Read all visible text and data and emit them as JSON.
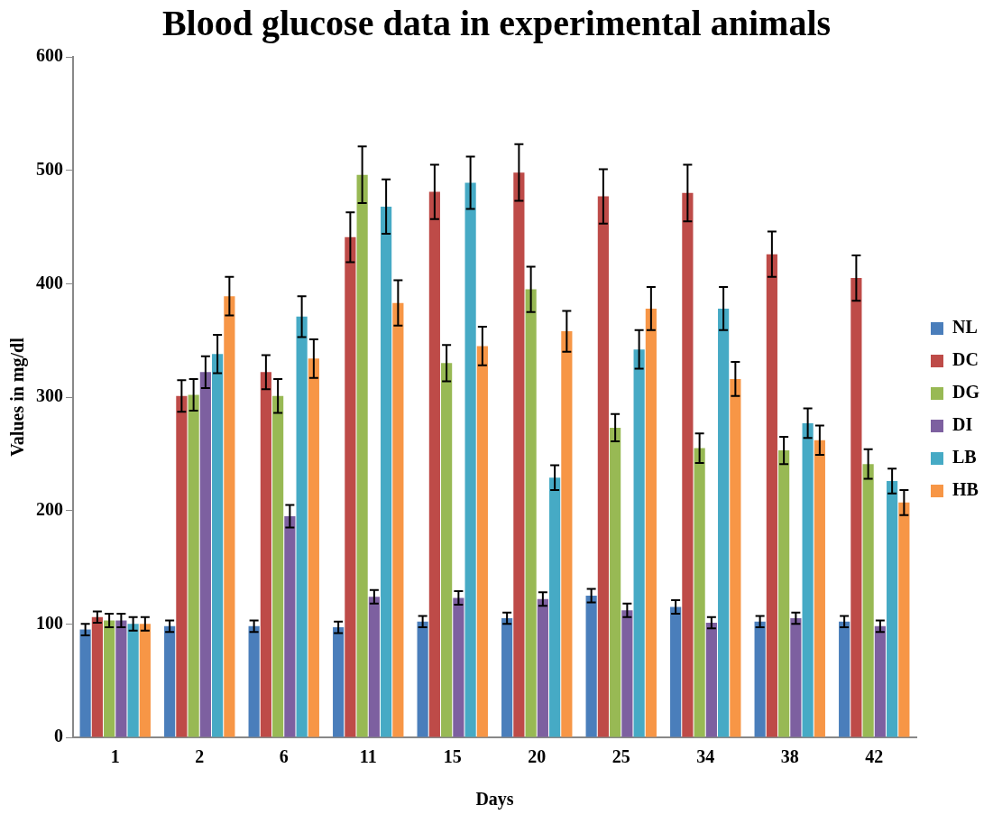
{
  "chart_data": {
    "type": "bar",
    "title": "Blood glucose data in experimental animals",
    "xlabel": "Days",
    "ylabel": "Values in mg/dl",
    "categories": [
      "1",
      "2",
      "6",
      "11",
      "15",
      "20",
      "25",
      "34",
      "38",
      "42"
    ],
    "series": [
      {
        "name": "NL",
        "color": "#4a7ebb",
        "values": [
          95,
          98,
          98,
          97,
          102,
          105,
          125,
          115,
          102,
          102
        ],
        "errors": [
          5,
          5,
          5,
          5,
          5,
          5,
          6,
          6,
          5,
          5
        ]
      },
      {
        "name": "DC",
        "color": "#be4b48",
        "values": [
          106,
          301,
          322,
          441,
          481,
          498,
          477,
          480,
          426,
          405
        ],
        "errors": [
          5,
          14,
          15,
          22,
          24,
          25,
          24,
          25,
          20,
          20
        ]
      },
      {
        "name": "DG",
        "color": "#98b954",
        "values": [
          103,
          302,
          301,
          496,
          330,
          395,
          273,
          255,
          253,
          241
        ],
        "errors": [
          6,
          14,
          15,
          25,
          16,
          20,
          12,
          13,
          12,
          13
        ]
      },
      {
        "name": "DI",
        "color": "#7d60a0",
        "values": [
          103,
          322,
          195,
          124,
          123,
          122,
          112,
          101,
          105,
          98
        ],
        "errors": [
          6,
          14,
          10,
          6,
          6,
          6,
          6,
          5,
          5,
          5
        ]
      },
      {
        "name": "LB",
        "color": "#46aac5",
        "values": [
          100,
          338,
          371,
          468,
          489,
          229,
          342,
          378,
          277,
          226
        ],
        "errors": [
          6,
          17,
          18,
          24,
          23,
          11,
          17,
          19,
          13,
          11
        ]
      },
      {
        "name": "HB",
        "color": "#f79646",
        "values": [
          100,
          389,
          334,
          383,
          345,
          358,
          378,
          316,
          262,
          207
        ],
        "errors": [
          6,
          17,
          17,
          20,
          17,
          18,
          19,
          15,
          13,
          11
        ]
      }
    ],
    "ylim": [
      0,
      600
    ],
    "yticks": [
      0,
      100,
      200,
      300,
      400,
      500,
      600
    ],
    "grid": false,
    "legend": "right"
  }
}
